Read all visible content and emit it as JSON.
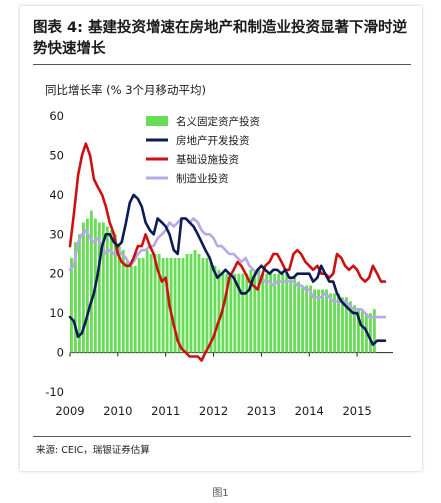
{
  "title": "图表 4: 基建投资增速在房地产和制造业投资显著下滑时逆势快速增长",
  "figure_caption": "图1",
  "source": "来源: CEIC，瑞银证券估算",
  "chart_data": {
    "type": "bar",
    "subtitle": "同比增长率 (% 3个月移动平均)",
    "ylim": [
      -10,
      60
    ],
    "yticks": [
      -10,
      0,
      10,
      20,
      30,
      40,
      50,
      60
    ],
    "xlim": [
      2009.0,
      2015.75
    ],
    "xticks": [
      2009,
      2010,
      2011,
      2012,
      2013,
      2014,
      2015
    ],
    "xtick_labels": [
      "2009",
      "2010",
      "2011",
      "2012",
      "2013",
      "2014",
      "2015"
    ],
    "legend_position": "top-center",
    "bar_series": {
      "name": "名义固定资产投资",
      "color": "#66dd55",
      "x_start": 2009.0,
      "step": 0.0833,
      "values": [
        24,
        28,
        30,
        33,
        34,
        36,
        34,
        33,
        33,
        32,
        31,
        30,
        27,
        26,
        23,
        22,
        22,
        24,
        24,
        26,
        25,
        25,
        25,
        24,
        24,
        24,
        24,
        24,
        24,
        25,
        25,
        26,
        25,
        24,
        24,
        23,
        22,
        21,
        20,
        20,
        19,
        20,
        20,
        20,
        20,
        21,
        21,
        21,
        20,
        20,
        20,
        20,
        20,
        20,
        20,
        19,
        19,
        18,
        17,
        17,
        17,
        16,
        16,
        16,
        16,
        15,
        15,
        15,
        14,
        14,
        13,
        12,
        11,
        11,
        10,
        10,
        11
      ]
    },
    "line_series": [
      {
        "name": "房地产开发投资",
        "color": "#0d1a55",
        "x": [
          2009.0,
          2009.08,
          2009.17,
          2009.25,
          2009.33,
          2009.42,
          2009.5,
          2009.58,
          2009.67,
          2009.75,
          2009.83,
          2009.92,
          2010.0,
          2010.08,
          2010.17,
          2010.25,
          2010.33,
          2010.42,
          2010.5,
          2010.58,
          2010.67,
          2010.75,
          2010.83,
          2010.92,
          2011.0,
          2011.08,
          2011.17,
          2011.25,
          2011.33,
          2011.42,
          2011.5,
          2011.58,
          2011.67,
          2011.75,
          2011.83,
          2011.92,
          2012.0,
          2012.08,
          2012.17,
          2012.25,
          2012.33,
          2012.42,
          2012.5,
          2012.58,
          2012.67,
          2012.75,
          2012.83,
          2012.92,
          2013.0,
          2013.08,
          2013.17,
          2013.25,
          2013.33,
          2013.42,
          2013.5,
          2013.58,
          2013.67,
          2013.75,
          2013.83,
          2013.92,
          2014.0,
          2014.08,
          2014.17,
          2014.25,
          2014.33,
          2014.42,
          2014.5,
          2014.58,
          2014.67,
          2014.75,
          2014.83,
          2014.92,
          2015.0,
          2015.08,
          2015.17,
          2015.25,
          2015.33,
          2015.42,
          2015.5,
          2015.58
        ],
        "values": [
          9,
          8,
          4,
          5,
          8,
          12,
          15,
          20,
          27,
          30,
          30,
          28,
          27,
          28,
          33,
          38,
          40,
          39,
          37,
          33,
          31,
          30,
          34,
          33,
          32,
          30,
          26,
          25,
          34,
          34,
          33,
          32,
          30,
          28,
          26,
          24,
          21,
          19,
          20,
          21,
          20,
          19,
          17,
          15,
          15,
          16,
          19,
          21,
          22,
          21,
          20,
          21,
          21,
          20,
          21,
          19,
          19,
          20,
          20,
          20,
          20,
          18,
          19,
          22,
          20,
          18,
          18,
          15,
          13,
          12,
          11,
          10,
          10,
          7,
          6,
          4,
          2,
          3,
          3,
          3
        ]
      },
      {
        "name": "基础设施投资",
        "color": "#cc1111",
        "x": [
          2009.0,
          2009.08,
          2009.17,
          2009.25,
          2009.33,
          2009.42,
          2009.5,
          2009.58,
          2009.67,
          2009.75,
          2009.83,
          2009.92,
          2010.0,
          2010.08,
          2010.17,
          2010.25,
          2010.33,
          2010.42,
          2010.5,
          2010.58,
          2010.67,
          2010.75,
          2010.83,
          2010.92,
          2011.0,
          2011.08,
          2011.17,
          2011.25,
          2011.33,
          2011.42,
          2011.5,
          2011.58,
          2011.67,
          2011.75,
          2011.83,
          2011.92,
          2012.0,
          2012.08,
          2012.17,
          2012.25,
          2012.33,
          2012.42,
          2012.5,
          2012.58,
          2012.67,
          2012.75,
          2012.83,
          2012.92,
          2013.0,
          2013.08,
          2013.17,
          2013.25,
          2013.33,
          2013.42,
          2013.5,
          2013.58,
          2013.67,
          2013.75,
          2013.83,
          2013.92,
          2014.0,
          2014.08,
          2014.17,
          2014.25,
          2014.33,
          2014.42,
          2014.5,
          2014.58,
          2014.67,
          2014.75,
          2014.83,
          2014.92,
          2015.0,
          2015.08,
          2015.17,
          2015.25,
          2015.33,
          2015.42,
          2015.5,
          2015.58
        ],
        "values": [
          27,
          35,
          45,
          50,
          53,
          50,
          44,
          42,
          40,
          37,
          33,
          30,
          25,
          23,
          22,
          22,
          24,
          27,
          27,
          30,
          27,
          25,
          21,
          18,
          19,
          12,
          7,
          3,
          1,
          0,
          -1,
          -1,
          -1,
          -2,
          0,
          2,
          4,
          7,
          10,
          14,
          19,
          21,
          23,
          22,
          20,
          18,
          17,
          16,
          19,
          22,
          23,
          25,
          25,
          23,
          21,
          21,
          25,
          26,
          25,
          23,
          22,
          21,
          22,
          20,
          20,
          19,
          20,
          25,
          24,
          22,
          21,
          22,
          21,
          19,
          18,
          19,
          22,
          20,
          18,
          18
        ]
      },
      {
        "name": "制造业投资",
        "color": "#b8a8e6",
        "x": [
          2009.0,
          2009.08,
          2009.17,
          2009.25,
          2009.33,
          2009.42,
          2009.5,
          2009.58,
          2009.67,
          2009.75,
          2009.83,
          2009.92,
          2010.0,
          2010.08,
          2010.17,
          2010.25,
          2010.33,
          2010.42,
          2010.5,
          2010.58,
          2010.67,
          2010.75,
          2010.83,
          2010.92,
          2011.0,
          2011.08,
          2011.17,
          2011.25,
          2011.33,
          2011.42,
          2011.5,
          2011.58,
          2011.67,
          2011.75,
          2011.83,
          2011.92,
          2012.0,
          2012.08,
          2012.17,
          2012.25,
          2012.33,
          2012.42,
          2012.5,
          2012.58,
          2012.67,
          2012.75,
          2012.83,
          2012.92,
          2013.0,
          2013.08,
          2013.17,
          2013.25,
          2013.33,
          2013.42,
          2013.5,
          2013.58,
          2013.67,
          2013.75,
          2013.83,
          2013.92,
          2014.0,
          2014.08,
          2014.17,
          2014.25,
          2014.33,
          2014.42,
          2014.5,
          2014.58,
          2014.67,
          2014.75,
          2014.83,
          2014.92,
          2015.0,
          2015.08,
          2015.17,
          2015.25,
          2015.33,
          2015.42,
          2015.5,
          2015.58
        ],
        "values": [
          21,
          22,
          28,
          30,
          31,
          29,
          28,
          29,
          27,
          25,
          26,
          25,
          26,
          25,
          24,
          22,
          23,
          25,
          26,
          26,
          27,
          27,
          29,
          30,
          31,
          33,
          32,
          33,
          34,
          34,
          33,
          34,
          33,
          31,
          30,
          30,
          29,
          27,
          27,
          26,
          25,
          25,
          24,
          23,
          24,
          22,
          21,
          20,
          19,
          18,
          18,
          17,
          18,
          18,
          18,
          18,
          18,
          17,
          17,
          16,
          16,
          14,
          14,
          14,
          15,
          14,
          13,
          13,
          13,
          13,
          12,
          11,
          11,
          11,
          10,
          9,
          9,
          9,
          9,
          9
        ]
      }
    ]
  }
}
